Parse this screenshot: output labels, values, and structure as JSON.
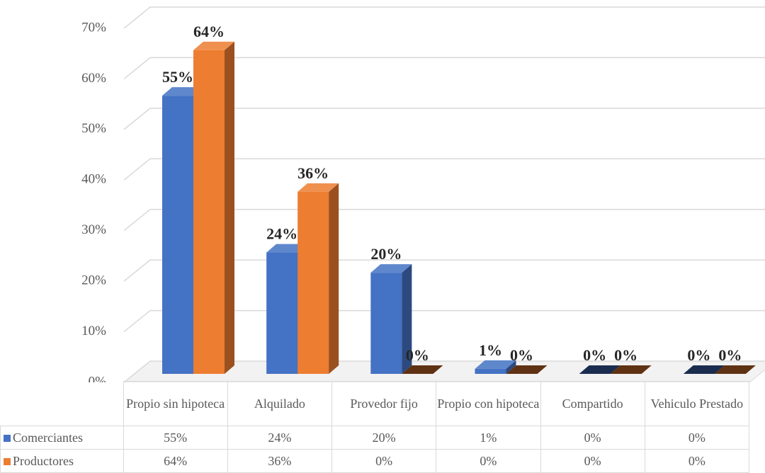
{
  "chart_data": {
    "type": "bar3d",
    "categories": [
      "Propio sin hipoteca",
      "Alquilado",
      "Provedor fijo",
      "Propio con hipoteca",
      "Compartido",
      "Vehiculo Prestado"
    ],
    "series": [
      {
        "name": "Comerciantes",
        "color": "#4472c4",
        "values": [
          55,
          24,
          20,
          1,
          0,
          0
        ],
        "value_labels": [
          "55%",
          "24%",
          "20%",
          "1%",
          "0%",
          "0%"
        ]
      },
      {
        "name": "Productores",
        "color": "#ed7d31",
        "values": [
          64,
          36,
          0,
          0,
          0,
          0
        ],
        "value_labels": [
          "64%",
          "36%",
          "0%",
          "0%",
          "0%",
          "0%"
        ]
      }
    ],
    "ylim": [
      0,
      70
    ],
    "yticks": [
      {
        "value": 0,
        "label": "0%"
      },
      {
        "value": 10,
        "label": "10%"
      },
      {
        "value": 20,
        "label": "20%"
      },
      {
        "value": 30,
        "label": "30%"
      },
      {
        "value": 40,
        "label": "40%"
      },
      {
        "value": 50,
        "label": "50%"
      },
      {
        "value": 60,
        "label": "60%"
      },
      {
        "value": 70,
        "label": "70%"
      }
    ],
    "grid": true
  }
}
